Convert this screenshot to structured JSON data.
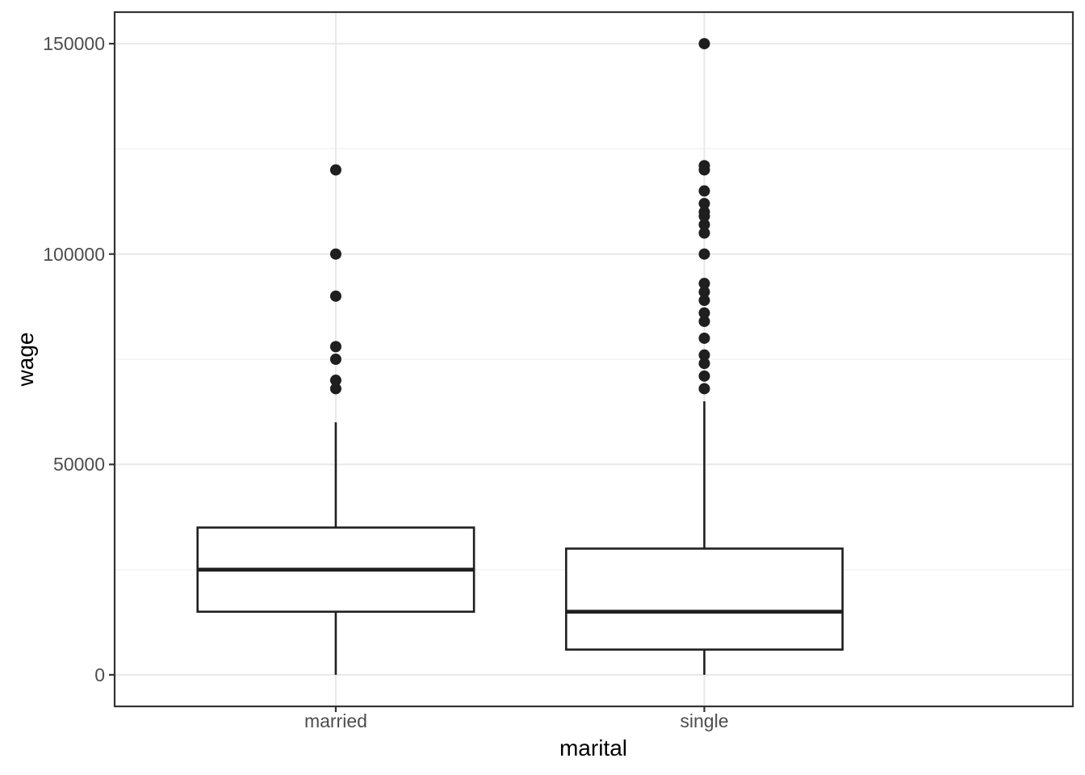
{
  "chart_data": {
    "type": "boxplot",
    "title": "",
    "xlabel": "marital",
    "ylabel": "wage",
    "categories": [
      "married",
      "single"
    ],
    "y_ticks": [
      0,
      50000,
      100000,
      150000
    ],
    "y_tick_labels": [
      "0",
      "50000",
      "100000",
      "150000"
    ],
    "y_minor_ticks": [
      25000,
      75000,
      125000
    ],
    "ylim": [
      -7500,
      157500
    ],
    "grid": true,
    "legend": "none",
    "series": [
      {
        "category": "married",
        "whisker_low": 0,
        "q1": 15000,
        "median": 25000,
        "q3": 35000,
        "whisker_high": 60000,
        "outliers": [
          68000,
          70000,
          75000,
          78000,
          90000,
          100000,
          120000
        ]
      },
      {
        "category": "single",
        "whisker_low": 0,
        "q1": 6000,
        "median": 15000,
        "q3": 30000,
        "whisker_high": 65000,
        "outliers": [
          68000,
          71000,
          74000,
          76000,
          80000,
          84000,
          86000,
          89000,
          91000,
          93000,
          100000,
          105000,
          107000,
          109000,
          110000,
          112000,
          115000,
          120000,
          121000,
          150000
        ]
      }
    ],
    "colors": {
      "background": "#ffffff",
      "panel_fill": "#ffffff",
      "panel_border": "#333333",
      "grid_major": "#e8e8e8",
      "grid_minor": "#f3f3f3",
      "box_stroke": "#1f1f1f",
      "box_fill": "#ffffff",
      "median": "#1f1f1f",
      "outlier": "#1f1f1f",
      "tick_mark": "#333333",
      "axis_text": "#4d4d4d",
      "axis_title": "#000000"
    }
  }
}
